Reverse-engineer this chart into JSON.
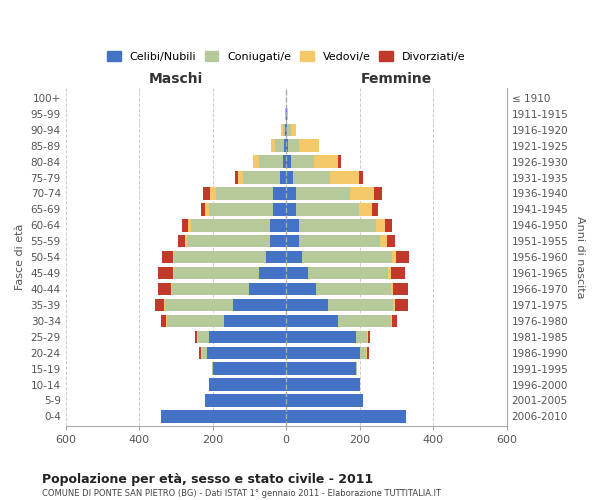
{
  "age_groups": [
    "100+",
    "95-99",
    "90-94",
    "85-89",
    "80-84",
    "75-79",
    "70-74",
    "65-69",
    "60-64",
    "55-59",
    "50-54",
    "45-49",
    "40-44",
    "35-39",
    "30-34",
    "25-29",
    "20-24",
    "15-19",
    "10-14",
    "5-9",
    "0-4"
  ],
  "birth_years": [
    "≤ 1910",
    "1911-1915",
    "1916-1920",
    "1921-1925",
    "1926-1930",
    "1931-1935",
    "1936-1940",
    "1941-1945",
    "1946-1950",
    "1951-1955",
    "1956-1960",
    "1961-1965",
    "1966-1970",
    "1971-1975",
    "1976-1980",
    "1981-1985",
    "1986-1990",
    "1991-1995",
    "1996-2000",
    "2001-2005",
    "2006-2010"
  ],
  "maschi": {
    "celibi": [
      0,
      1,
      3,
      5,
      10,
      18,
      35,
      35,
      45,
      45,
      55,
      75,
      100,
      145,
      170,
      210,
      215,
      200,
      210,
      220,
      340
    ],
    "coniugati": [
      0,
      1,
      7,
      25,
      65,
      100,
      155,
      175,
      215,
      225,
      250,
      230,
      210,
      185,
      155,
      30,
      15,
      3,
      0,
      0,
      0
    ],
    "vedovi": [
      0,
      0,
      3,
      10,
      14,
      14,
      18,
      10,
      6,
      6,
      4,
      3,
      3,
      3,
      3,
      3,
      3,
      0,
      0,
      0,
      0
    ],
    "divorziati": [
      0,
      0,
      0,
      0,
      0,
      6,
      18,
      12,
      18,
      18,
      28,
      40,
      35,
      25,
      12,
      4,
      3,
      0,
      0,
      0,
      0
    ]
  },
  "femmine": {
    "nubili": [
      0,
      1,
      3,
      6,
      12,
      18,
      28,
      28,
      35,
      35,
      42,
      58,
      80,
      115,
      140,
      190,
      200,
      190,
      200,
      210,
      325
    ],
    "coniugate": [
      0,
      2,
      10,
      30,
      65,
      100,
      145,
      170,
      210,
      220,
      245,
      220,
      205,
      175,
      145,
      30,
      18,
      4,
      0,
      0,
      0
    ],
    "vedove": [
      0,
      3,
      15,
      52,
      65,
      80,
      65,
      35,
      25,
      18,
      12,
      6,
      6,
      6,
      4,
      3,
      3,
      0,
      0,
      0,
      0
    ],
    "divorziate": [
      0,
      0,
      0,
      0,
      6,
      12,
      24,
      18,
      18,
      24,
      35,
      40,
      40,
      35,
      12,
      4,
      3,
      0,
      0,
      0,
      0
    ]
  },
  "colors": {
    "celibi": "#4472C4",
    "coniugati": "#B5C99A",
    "vedovi": "#F5C96A",
    "divorziati": "#C0392B"
  },
  "title": "Popolazione per età, sesso e stato civile - 2011",
  "subtitle": "COMUNE DI PONTE SAN PIETRO (BG) - Dati ISTAT 1° gennaio 2011 - Elaborazione TUTTITALIA.IT",
  "ylabel_left": "Fasce di età",
  "ylabel_right": "Anni di nascita",
  "xlabel_left": "Maschi",
  "xlabel_right": "Femmine",
  "xlim": 600,
  "background_color": "#ffffff",
  "grid_color": "#cccccc"
}
